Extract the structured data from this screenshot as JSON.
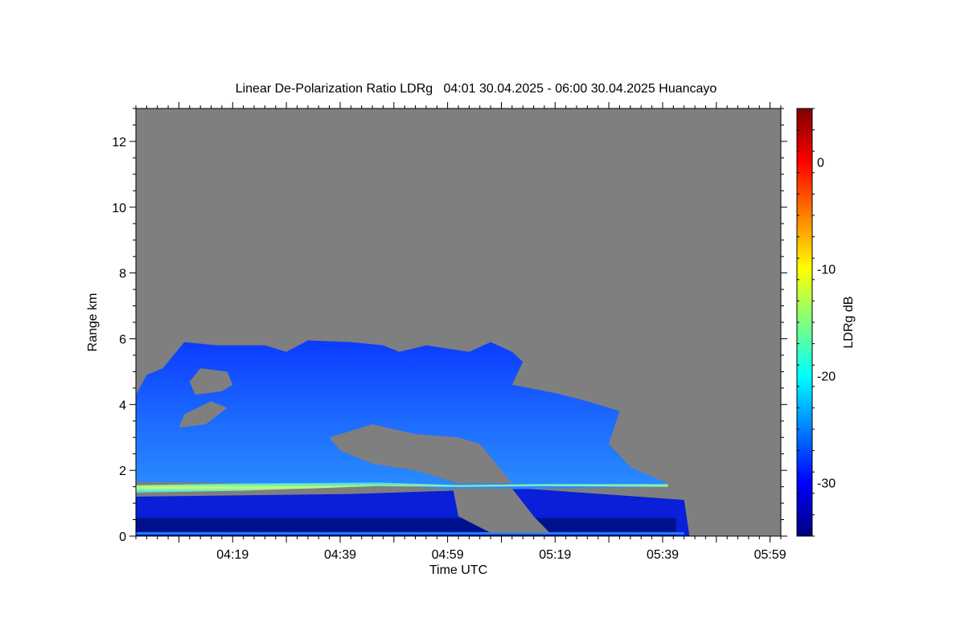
{
  "chart_data": {
    "type": "heatmap",
    "title": "Linear De-Polarization Ratio LDRg   04:01 30.04.2025 - 06:00 30.04.2025 Huancayo",
    "xlabel": "Time UTC",
    "ylabel": "Range km",
    "colorbar_label": "LDRg dB",
    "x_ticks": [
      "04:19",
      "04:39",
      "04:59",
      "05:19",
      "05:39",
      "05:59"
    ],
    "x_tick_minutes": [
      18,
      38,
      58,
      78,
      98,
      118
    ],
    "xlim_minutes": [
      0,
      120
    ],
    "y_ticks": [
      0,
      2,
      4,
      6,
      8,
      10,
      12
    ],
    "ylim": [
      0,
      13
    ],
    "colorbar_ticks": [
      0,
      -10,
      -20,
      -30
    ],
    "colorbar_range": [
      -35,
      5
    ],
    "grid": false,
    "colors": {
      "no_data": "#7f7f7f",
      "colormap": [
        "#00007f",
        "#0000ff",
        "#007fff",
        "#00ffff",
        "#7fff7f",
        "#ffff00",
        "#ff7f00",
        "#ff0000",
        "#7f0000"
      ]
    },
    "features": [
      {
        "name": "cloud layer",
        "ldr_db": -29,
        "time_minutes": [
          0,
          93
        ],
        "range_km": [
          1.6,
          6.0
        ]
      },
      {
        "name": "aerosol layer",
        "ldr_db": -19,
        "time_minutes": [
          0,
          99
        ],
        "range_km": [
          1.3,
          1.65
        ]
      },
      {
        "name": "boundary layer",
        "ldr_db": -33,
        "time_minutes": [
          0,
          102
        ],
        "range_km": [
          0.0,
          1.3
        ]
      }
    ]
  }
}
